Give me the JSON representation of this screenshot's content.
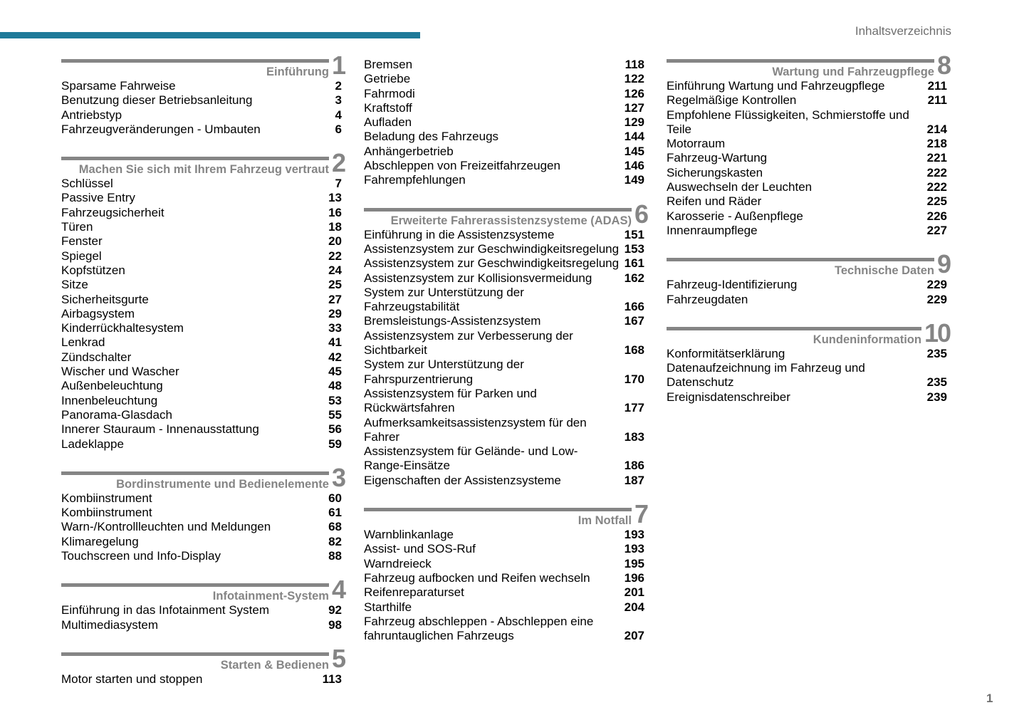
{
  "header": {
    "title": "Inhaltsverzeichnis",
    "page_number": "1",
    "accent_color": "#1f7a99"
  },
  "columns": [
    [
      {
        "number": "1",
        "title": "Einführung",
        "entries": [
          {
            "lines": [
              "Sparsame Fahrweise"
            ],
            "page": "2"
          },
          {
            "lines": [
              "Benutzung dieser Betriebsanleitung"
            ],
            "page": "3"
          },
          {
            "lines": [
              "Antriebstyp"
            ],
            "page": "4"
          },
          {
            "lines": [
              "Fahrzeugveränderungen - Umbauten"
            ],
            "page": "6"
          }
        ]
      },
      {
        "number": "2",
        "title": "Machen Sie sich mit Ihrem Fahrzeug vertraut",
        "entries": [
          {
            "lines": [
              "Schlüssel"
            ],
            "page": "7"
          },
          {
            "lines": [
              "Passive Entry"
            ],
            "page": "13"
          },
          {
            "lines": [
              "Fahrzeugsicherheit"
            ],
            "page": "16"
          },
          {
            "lines": [
              "Türen"
            ],
            "page": "18"
          },
          {
            "lines": [
              "Fenster"
            ],
            "page": "20"
          },
          {
            "lines": [
              "Spiegel"
            ],
            "page": "22"
          },
          {
            "lines": [
              "Kopfstützen"
            ],
            "page": "24"
          },
          {
            "lines": [
              "Sitze"
            ],
            "page": "25"
          },
          {
            "lines": [
              "Sicherheitsgurte"
            ],
            "page": "27"
          },
          {
            "lines": [
              "Airbagsystem"
            ],
            "page": "29"
          },
          {
            "lines": [
              "Kinderrückhaltesystem"
            ],
            "page": "33"
          },
          {
            "lines": [
              "Lenkrad"
            ],
            "page": "41"
          },
          {
            "lines": [
              "Zündschalter"
            ],
            "page": "42"
          },
          {
            "lines": [
              "Wischer und Wascher"
            ],
            "page": "45"
          },
          {
            "lines": [
              "Außenbeleuchtung"
            ],
            "page": "48"
          },
          {
            "lines": [
              "Innenbeleuchtung"
            ],
            "page": "53"
          },
          {
            "lines": [
              "Panorama-Glasdach"
            ],
            "page": "55"
          },
          {
            "lines": [
              "Innerer Stauraum - Innenausstattung"
            ],
            "page": "56"
          },
          {
            "lines": [
              "Ladeklappe"
            ],
            "page": "59"
          }
        ]
      },
      {
        "number": "3",
        "title": "Bordinstrumente und Bedienelemente",
        "entries": [
          {
            "lines": [
              "Kombiinstrument"
            ],
            "page": "60"
          },
          {
            "lines": [
              "Kombiinstrument"
            ],
            "page": "61"
          },
          {
            "lines": [
              "Warn-/Kontrollleuchten und Meldungen"
            ],
            "page": "68"
          },
          {
            "lines": [
              "Klimaregelung"
            ],
            "page": "82"
          },
          {
            "lines": [
              "Touchscreen und Info-Display"
            ],
            "page": "88"
          }
        ]
      },
      {
        "number": "4",
        "title": "Infotainment-System",
        "entries": [
          {
            "lines": [
              "Einführung in das Infotainment System"
            ],
            "page": "92"
          },
          {
            "lines": [
              "Multimediasystem"
            ],
            "page": "98"
          }
        ]
      },
      {
        "number": "5",
        "title": "Starten & Bedienen",
        "entries": [
          {
            "lines": [
              "Motor starten und stoppen"
            ],
            "page": "113"
          }
        ]
      }
    ],
    [
      {
        "number": "",
        "title": "",
        "entries": [
          {
            "lines": [
              "Bremsen"
            ],
            "page": "118"
          },
          {
            "lines": [
              "Getriebe"
            ],
            "page": "122"
          },
          {
            "lines": [
              "Fahrmodi"
            ],
            "page": "126"
          },
          {
            "lines": [
              "Kraftstoff"
            ],
            "page": "127"
          },
          {
            "lines": [
              "Aufladen"
            ],
            "page": "129"
          },
          {
            "lines": [
              "Beladung des Fahrzeugs"
            ],
            "page": "144"
          },
          {
            "lines": [
              "Anhängerbetrieb"
            ],
            "page": "145"
          },
          {
            "lines": [
              "Abschleppen von Freizeitfahrzeugen"
            ],
            "page": "146"
          },
          {
            "lines": [
              "Fahrempfehlungen"
            ],
            "page": "149"
          }
        ]
      },
      {
        "number": "6",
        "title": "Erweiterte Fahrerassistenzsysteme (ADAS)",
        "entries": [
          {
            "lines": [
              "Einführung in die Assistenzsysteme"
            ],
            "page": "151"
          },
          {
            "lines": [
              "Assistenzsystem zur Geschwindigkeitsregelung"
            ],
            "page": "153"
          },
          {
            "lines": [
              "Assistenzsystem zur Geschwindigkeitsregelung"
            ],
            "page": "161"
          },
          {
            "lines": [
              "Assistenzsystem zur Kollisionsvermeidung"
            ],
            "page": "162"
          },
          {
            "lines": [
              "System zur Unterstützung der",
              "Fahrzeugstabilität"
            ],
            "page": "166"
          },
          {
            "lines": [
              "Bremsleistungs-Assistenzsystem"
            ],
            "page": "167"
          },
          {
            "lines": [
              "Assistenzsystem zur Verbesserung der",
              "Sichtbarkeit"
            ],
            "page": "168"
          },
          {
            "lines": [
              "System zur Unterstützung der",
              "Fahrspurzentrierung"
            ],
            "page": "170"
          },
          {
            "lines": [
              "Assistenzsystem für Parken und",
              "Rückwärtsfahren"
            ],
            "page": "177"
          },
          {
            "lines": [
              "Aufmerksamkeitsassistenzsystem für den",
              "Fahrer"
            ],
            "page": "183"
          },
          {
            "lines": [
              "Assistenzsystem für Gelände- und Low-",
              "Range-Einsätze"
            ],
            "page": "186"
          },
          {
            "lines": [
              "Eigenschaften der Assistenzsysteme"
            ],
            "page": "187"
          }
        ]
      },
      {
        "number": "7",
        "title": "Im Notfall",
        "entries": [
          {
            "lines": [
              "Warnblinkanlage"
            ],
            "page": "193"
          },
          {
            "lines": [
              "Assist- und SOS-Ruf"
            ],
            "page": "193"
          },
          {
            "lines": [
              "Warndreieck"
            ],
            "page": "195"
          },
          {
            "lines": [
              "Fahrzeug aufbocken und Reifen wechseln"
            ],
            "page": "196"
          },
          {
            "lines": [
              "Reifenreparaturset"
            ],
            "page": "201"
          },
          {
            "lines": [
              "Starthilfe"
            ],
            "page": "204"
          },
          {
            "lines": [
              "Fahrzeug abschleppen - Abschleppen eine",
              "fahruntauglichen Fahrzeugs"
            ],
            "page": "207"
          }
        ]
      }
    ],
    [
      {
        "number": "8",
        "title": "Wartung und Fahrzeugpflege",
        "entries": [
          {
            "lines": [
              "Einführung Wartung und Fahrzeugpflege"
            ],
            "page": "211"
          },
          {
            "lines": [
              "Regelmäßige Kontrollen"
            ],
            "page": "211"
          },
          {
            "lines": [
              "Empfohlene Flüssigkeiten, Schmierstoffe und",
              "Teile"
            ],
            "page": "214"
          },
          {
            "lines": [
              "Motorraum"
            ],
            "page": "218"
          },
          {
            "lines": [
              "Fahrzeug-Wartung"
            ],
            "page": "221"
          },
          {
            "lines": [
              "Sicherungskasten"
            ],
            "page": "222"
          },
          {
            "lines": [
              "Auswechseln der Leuchten"
            ],
            "page": "222"
          },
          {
            "lines": [
              "Reifen und Räder"
            ],
            "page": "225"
          },
          {
            "lines": [
              "Karosserie - Außenpflege"
            ],
            "page": "226"
          },
          {
            "lines": [
              "Innenraumpflege"
            ],
            "page": "227"
          }
        ]
      },
      {
        "number": "9",
        "title": "Technische Daten",
        "entries": [
          {
            "lines": [
              "Fahrzeug-Identifizierung"
            ],
            "page": "229"
          },
          {
            "lines": [
              "Fahrzeugdaten"
            ],
            "page": "229"
          }
        ]
      },
      {
        "number": "10",
        "title": "Kundeninformation",
        "entries": [
          {
            "lines": [
              "Konformitätserklärung"
            ],
            "page": "235"
          },
          {
            "lines": [
              "Datenaufzeichnung im Fahrzeug und",
              "Datenschutz"
            ],
            "page": "235"
          },
          {
            "lines": [
              "Ereignisdatenschreiber"
            ],
            "page": "239"
          }
        ]
      }
    ]
  ]
}
